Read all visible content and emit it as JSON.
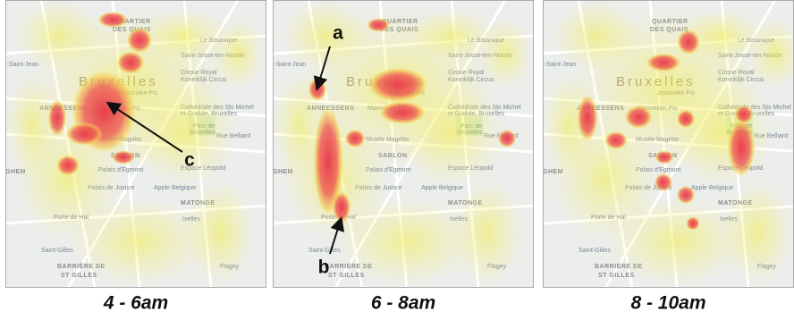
{
  "panels": [
    {
      "caption": "4 - 6am",
      "annotations": [
        {
          "label": "c"
        }
      ]
    },
    {
      "caption": "6 - 8am",
      "annotations": [
        {
          "label": "a"
        },
        {
          "label": "b"
        }
      ]
    },
    {
      "caption": "8 - 10am",
      "annotations": []
    }
  ],
  "map_labels": [
    {
      "text": "QUARTIER"
    },
    {
      "text": "DES QUAIS"
    },
    {
      "text": "Le Botanique"
    },
    {
      "text": "Saint-Josse-ten-Noode"
    },
    {
      "text": "k-Saint-Jean"
    },
    {
      "text": "Bruxelles"
    },
    {
      "text": "Jeanneke Pis"
    },
    {
      "text": "Cirque Royal"
    },
    {
      "text": "Koninklijk Circus"
    },
    {
      "text": "ANNEESSENS"
    },
    {
      "text": "Manneken Pis"
    },
    {
      "text": "Cathédrale des Sts Michel"
    },
    {
      "text": "et Gudule, Bruxelles"
    },
    {
      "text": "Parc de"
    },
    {
      "text": "Bruxelles"
    },
    {
      "text": "Musée Magritte"
    },
    {
      "text": "Rue Belliard"
    },
    {
      "text": "SABLON"
    },
    {
      "text": "GHEM"
    },
    {
      "text": "Palais d'Egmont"
    },
    {
      "text": "Espace Léopold"
    },
    {
      "text": "Palais de Justice"
    },
    {
      "text": "Apple Belgique"
    },
    {
      "text": "MATONGE"
    },
    {
      "text": "Porte de Hal"
    },
    {
      "text": "Ixelles"
    },
    {
      "text": "Saint-Gilles"
    },
    {
      "text": "BARRIÈRE DE"
    },
    {
      "text": "ST GILLES"
    },
    {
      "text": "Flagey"
    }
  ]
}
